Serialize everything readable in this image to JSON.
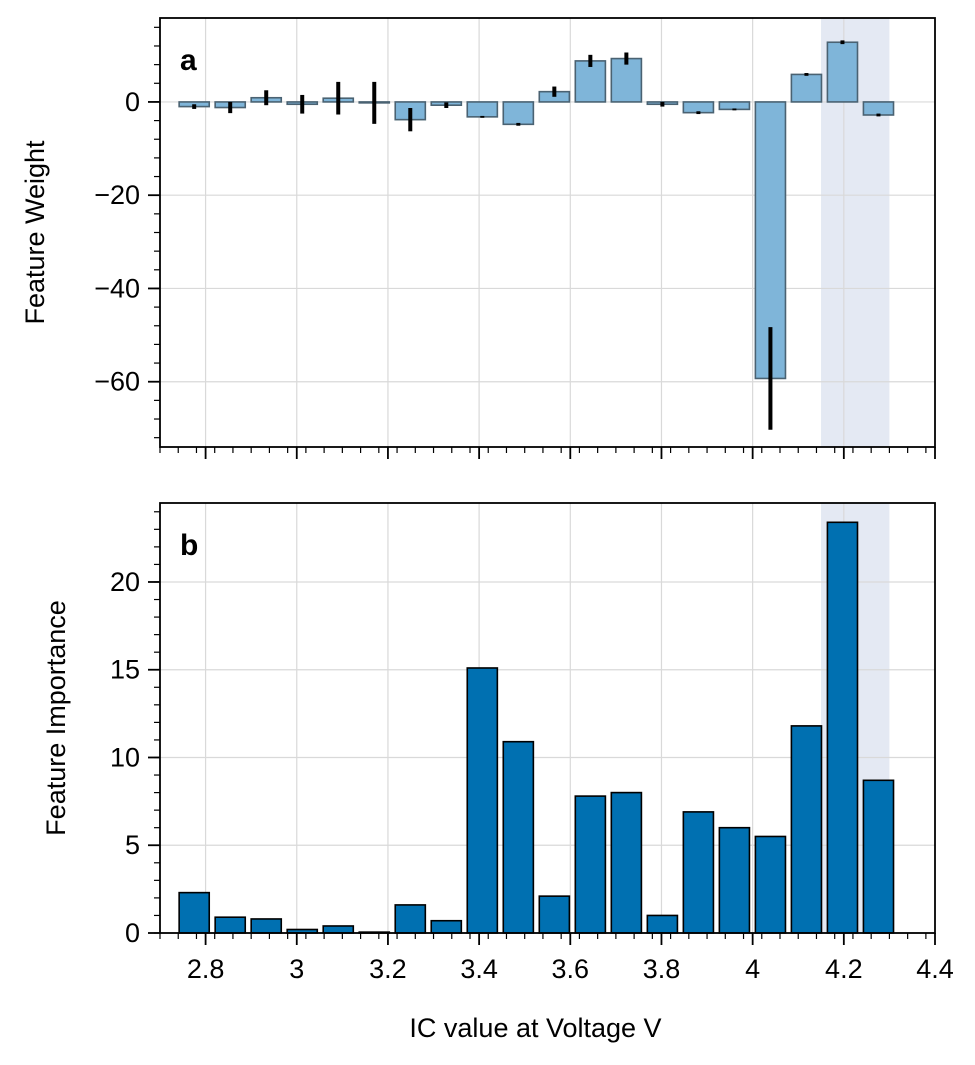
{
  "chart_data": [
    {
      "type": "bar",
      "panel_label": "a",
      "xlabel": "",
      "ylabel": "Feature Weight",
      "xlim": [
        2.7,
        4.4
      ],
      "ylim": [
        -74,
        18
      ],
      "yticks": [
        0,
        -20,
        -40,
        -60
      ],
      "ytick_labels": [
        "0",
        "−20",
        "−40",
        "−60"
      ],
      "xticks": [
        2.8,
        3.0,
        3.2,
        3.4,
        3.6,
        3.8,
        4.0,
        4.2,
        4.4
      ],
      "xtick_labels_shown": false,
      "grid": true,
      "highlight_x_range": [
        4.15,
        4.3
      ],
      "bar_color": "#7fb5d9",
      "bar_edge_color": "#4a6272",
      "error_color": "#000000",
      "bar_width": 0.066,
      "x": [
        2.775,
        2.854,
        2.933,
        3.012,
        3.091,
        3.17,
        3.249,
        3.328,
        3.407,
        3.486,
        3.565,
        3.644,
        3.723,
        3.802,
        3.881,
        3.96,
        4.039,
        4.118,
        4.197,
        4.276
      ],
      "values": [
        -1.0,
        -1.2,
        0.9,
        -0.5,
        0.8,
        -0.2,
        -3.8,
        -0.7,
        -3.2,
        -4.8,
        2.2,
        8.8,
        9.3,
        -0.5,
        -2.3,
        -1.6,
        -59.3,
        5.9,
        12.8,
        -2.8
      ],
      "errors": [
        0.5,
        1.2,
        1.6,
        2.0,
        3.5,
        4.5,
        2.5,
        0.6,
        0.2,
        0.3,
        1.1,
        1.3,
        1.3,
        0.5,
        0.3,
        0.2,
        11.0,
        0.3,
        0.4,
        0.3
      ]
    },
    {
      "type": "bar",
      "panel_label": "b",
      "xlabel": "IC value at Voltage V",
      "ylabel": "Feature Importance",
      "xlim": [
        2.7,
        4.4
      ],
      "ylim": [
        0,
        24.5
      ],
      "yticks": [
        0,
        5,
        10,
        15,
        20
      ],
      "ytick_labels": [
        "0",
        "5",
        "10",
        "15",
        "20"
      ],
      "xticks": [
        2.8,
        3.0,
        3.2,
        3.4,
        3.6,
        3.8,
        4.0,
        4.2,
        4.4
      ],
      "xtick_labels": [
        "2.8",
        "3",
        "3.2",
        "3.4",
        "3.6",
        "3.8",
        "4",
        "4.2",
        "4.4"
      ],
      "grid": true,
      "highlight_x_range": [
        4.15,
        4.3
      ],
      "bar_color": "#0070b1",
      "bar_edge_color": "#000000",
      "bar_width": 0.066,
      "x": [
        2.775,
        2.854,
        2.933,
        3.012,
        3.091,
        3.17,
        3.249,
        3.328,
        3.407,
        3.486,
        3.565,
        3.644,
        3.723,
        3.802,
        3.881,
        3.96,
        4.039,
        4.118,
        4.197,
        4.276
      ],
      "values": [
        2.3,
        0.9,
        0.8,
        0.2,
        0.4,
        0.05,
        1.6,
        0.7,
        15.1,
        10.9,
        2.1,
        7.8,
        8.0,
        1.0,
        6.9,
        6.0,
        5.5,
        11.8,
        23.4,
        8.7
      ]
    }
  ],
  "colors": {
    "grid": "#d9d9d9",
    "highlight_band": "#e4e9f3",
    "axes": "#000000"
  }
}
